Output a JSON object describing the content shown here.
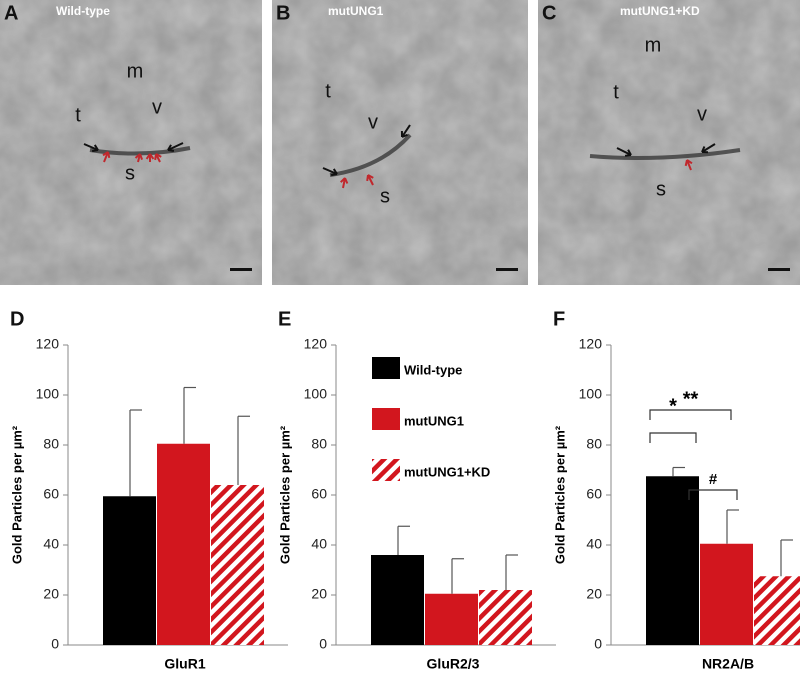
{
  "micrographs": [
    {
      "panel": "A",
      "title": "Wild-type",
      "labels": [
        "m",
        "t",
        "v",
        "s"
      ]
    },
    {
      "panel": "B",
      "title": "mutUNG1",
      "labels": [
        "t",
        "v",
        "s"
      ]
    },
    {
      "panel": "C",
      "title": "mutUNG1+KD",
      "labels": [
        "m",
        "t",
        "v",
        "s"
      ]
    }
  ],
  "chart_data": [
    {
      "type": "bar",
      "panel": "D",
      "ylabel": "Gold Particles per µm²",
      "categories": [
        "GluR1"
      ],
      "series": [
        {
          "color": "#000000",
          "values": [
            59.5
          ],
          "errors": [
            34.5
          ]
        },
        {
          "color": "#d2161e",
          "values": [
            80.5
          ],
          "errors": [
            22.5
          ]
        },
        {
          "color": "#d2161e",
          "pattern": "hatch",
          "values": [
            64
          ],
          "errors": [
            27.5
          ]
        }
      ],
      "ylim": [
        0,
        120
      ],
      "yticks": [
        0,
        20,
        40,
        60,
        80,
        100,
        120
      ]
    },
    {
      "type": "bar",
      "panel": "E",
      "ylabel": "Gold Particles per µm²",
      "categories": [
        "GluR2/3"
      ],
      "legend": "top-left",
      "series": [
        {
          "name": "Wild-type",
          "color": "#000000",
          "values": [
            36
          ],
          "errors": [
            11.5
          ]
        },
        {
          "name": "mutUNG1",
          "color": "#d2161e",
          "values": [
            20.5
          ],
          "errors": [
            14
          ]
        },
        {
          "name": "mutUNG1+KD",
          "color": "#d2161e",
          "pattern": "hatch",
          "values": [
            22
          ],
          "errors": [
            14
          ]
        }
      ],
      "ylim": [
        0,
        120
      ],
      "yticks": [
        0,
        20,
        40,
        60,
        80,
        100,
        120
      ]
    },
    {
      "type": "bar",
      "panel": "F",
      "ylabel": "Gold Particles per µm²",
      "categories": [
        "NR2A/B"
      ],
      "series": [
        {
          "color": "#000000",
          "values": [
            67.5
          ],
          "errors": [
            3.5
          ]
        },
        {
          "color": "#d2161e",
          "values": [
            40.5
          ],
          "errors": [
            13.5
          ]
        },
        {
          "color": "#d2161e",
          "pattern": "hatch",
          "values": [
            27.5
          ],
          "errors": [
            14.5
          ]
        }
      ],
      "annotations": [
        {
          "text": "**"
        },
        {
          "text": "*"
        },
        {
          "text": "#"
        }
      ],
      "ylim": [
        0,
        120
      ],
      "yticks": [
        0,
        20,
        40,
        60,
        80,
        100,
        120
      ]
    }
  ]
}
